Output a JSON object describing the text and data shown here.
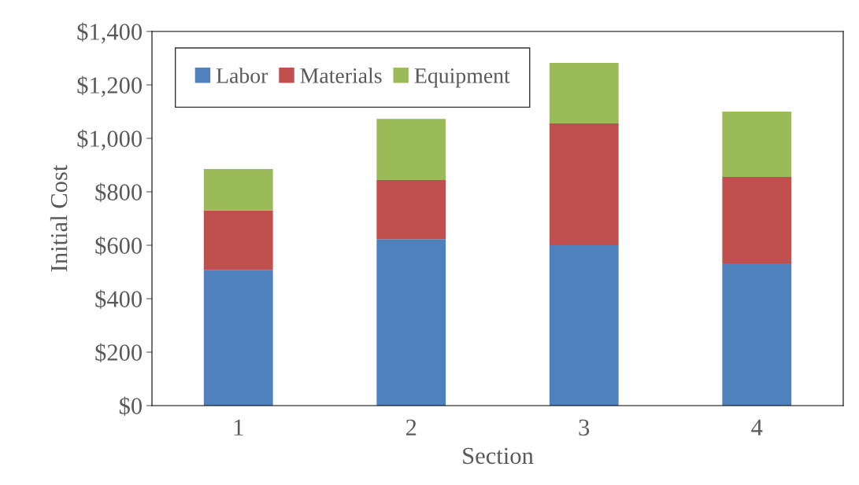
{
  "chart_data": {
    "type": "bar",
    "stacked": true,
    "xlabel": "Section",
    "ylabel": "Initial Cost",
    "categories": [
      "1",
      "2",
      "3",
      "4"
    ],
    "series": [
      {
        "name": "Labor",
        "color": "#4f81bd",
        "values": [
          508,
          623,
          600,
          532
        ]
      },
      {
        "name": "Materials",
        "color": "#c0504d",
        "values": [
          222,
          221,
          456,
          324
        ]
      },
      {
        "name": "Equipment",
        "color": "#9bbb59",
        "values": [
          155,
          229,
          226,
          244
        ]
      }
    ],
    "ylim": [
      0,
      1400
    ],
    "yticks": [
      {
        "value": 0,
        "label": "$0"
      },
      {
        "value": 200,
        "label": "$200"
      },
      {
        "value": 400,
        "label": "$400"
      },
      {
        "value": 600,
        "label": "$600"
      },
      {
        "value": 800,
        "label": "$800"
      },
      {
        "value": 1000,
        "label": "$1,000"
      },
      {
        "value": 1200,
        "label": "$1,200"
      },
      {
        "value": 1400,
        "label": "$1,400"
      }
    ],
    "grid": false,
    "legend": "top left"
  }
}
